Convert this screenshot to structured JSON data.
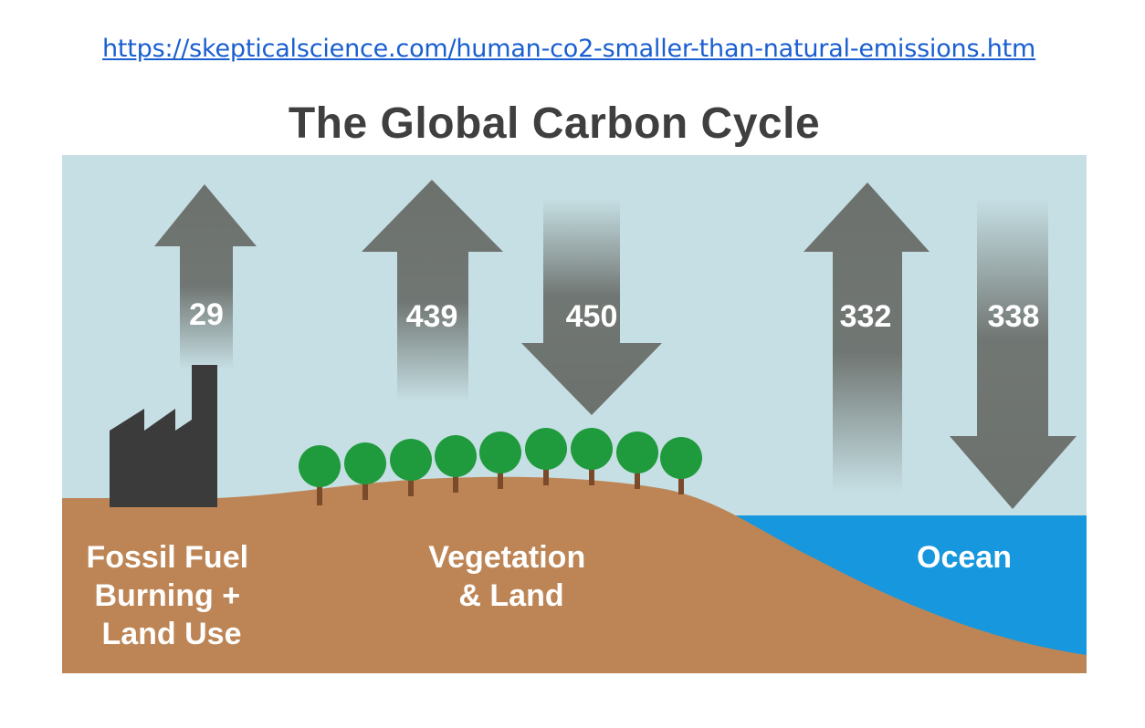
{
  "source_url": "https://skepticalscience.com/human-co2-smaller-than-natural-emissions.htm",
  "title": "The Global Carbon Cycle",
  "fluxes": [
    {
      "value": "29",
      "direction": "up"
    },
    {
      "value": "439",
      "direction": "up"
    },
    {
      "value": "450",
      "direction": "down"
    },
    {
      "value": "332",
      "direction": "up"
    },
    {
      "value": "338",
      "direction": "down"
    }
  ],
  "regions": {
    "fossil": [
      "Fossil Fuel",
      "Burning +",
      "Land Use"
    ],
    "vegetation": [
      "Vegetation",
      "& Land"
    ],
    "ocean": [
      "Ocean"
    ]
  },
  "colors": {
    "sky": "#c6dfe4",
    "ground": "#bd8555",
    "ocean": "#1797dd",
    "arrow": "#6c716d",
    "tree": "#1f9a3c",
    "trunk": "#7a4a2a",
    "factory": "#3b3b3b",
    "title": "#3f3f3f",
    "link": "#1a5fd0"
  }
}
